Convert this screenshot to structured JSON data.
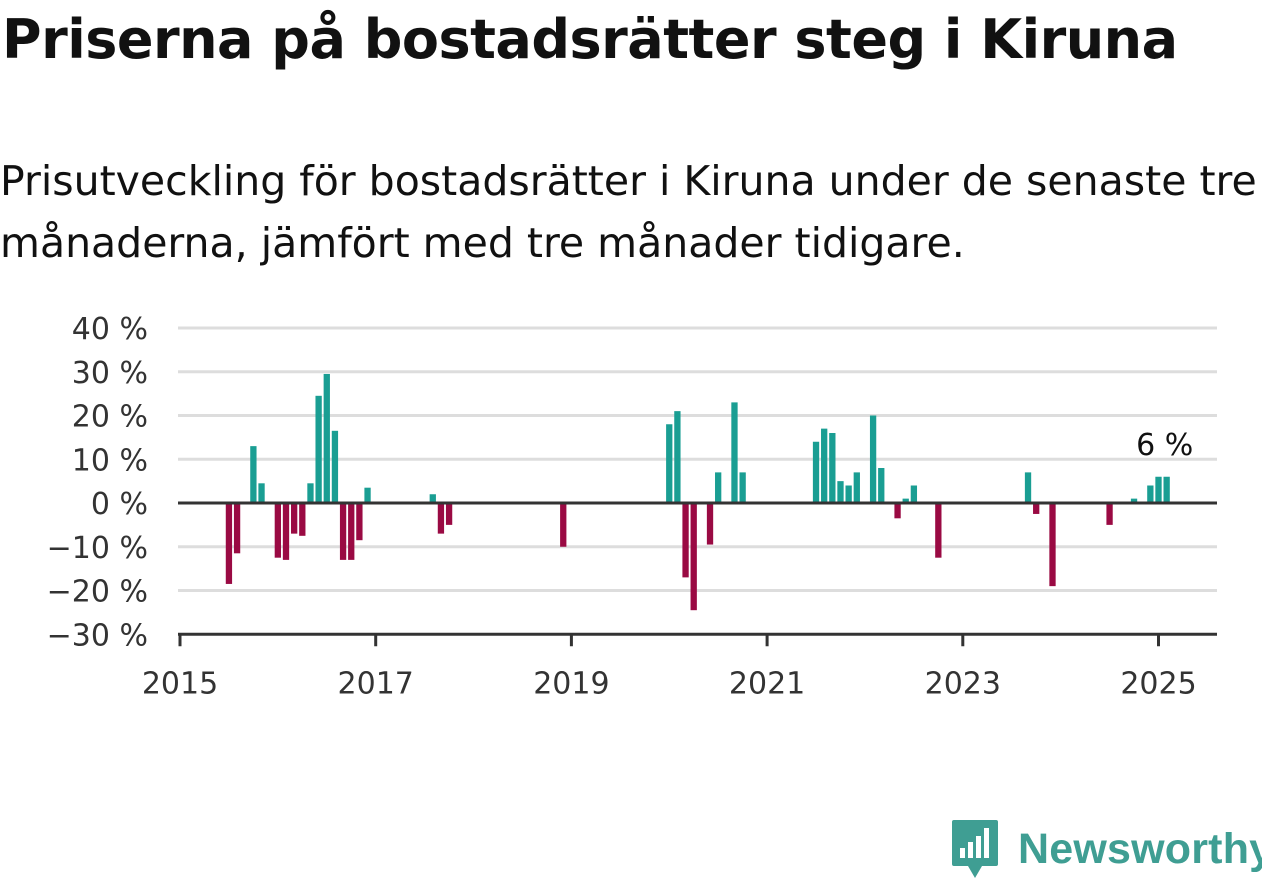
{
  "title": "Priserna på bostadsrätter steg i Kiruna",
  "subtitle": "Prisutveckling för bostadsrätter i Kiruna under de senaste tre månaderna, jämfört med tre månader tidigare.",
  "brand": {
    "name": "Newsworthy",
    "color": "#3f9e93"
  },
  "colors": {
    "positive": "#1a9e93",
    "negative": "#9a0a43",
    "grid": "#dddddd",
    "axis": "#333333"
  },
  "chart_data": {
    "type": "bar",
    "ylim": [
      -30,
      40
    ],
    "y_ticks": [
      40,
      30,
      20,
      10,
      0,
      -10,
      -20,
      -30
    ],
    "y_tick_labels": [
      "40 %",
      "30 %",
      "20 %",
      "10 %",
      "0 %",
      "−10 %",
      "−20 %",
      "−30 %"
    ],
    "x_ticks": [
      2015,
      2017,
      2019,
      2021,
      2023,
      2025
    ],
    "x_tick_labels": [
      "2015",
      "2017",
      "2019",
      "2021",
      "2023",
      "2025"
    ],
    "x_range": [
      "2015-01",
      "2025-07"
    ],
    "grid": true,
    "annotation": {
      "text": "6 %",
      "x": "2025-02",
      "y": 6
    },
    "points": [
      {
        "x": "2015-07",
        "y": -18.5
      },
      {
        "x": "2015-08",
        "y": -11.5
      },
      {
        "x": "2015-10",
        "y": 13
      },
      {
        "x": "2015-11",
        "y": 4.5
      },
      {
        "x": "2016-01",
        "y": -12.5
      },
      {
        "x": "2016-02",
        "y": -13
      },
      {
        "x": "2016-03",
        "y": -7
      },
      {
        "x": "2016-04",
        "y": -7.5
      },
      {
        "x": "2016-05",
        "y": 4.5
      },
      {
        "x": "2016-06",
        "y": 24.5
      },
      {
        "x": "2016-07",
        "y": 29.5
      },
      {
        "x": "2016-08",
        "y": 16.5
      },
      {
        "x": "2016-09",
        "y": -13
      },
      {
        "x": "2016-10",
        "y": -13
      },
      {
        "x": "2016-11",
        "y": -8.5
      },
      {
        "x": "2016-12",
        "y": 3.5
      },
      {
        "x": "2017-08",
        "y": 2
      },
      {
        "x": "2017-09",
        "y": -7
      },
      {
        "x": "2017-10",
        "y": -5
      },
      {
        "x": "2018-12",
        "y": -10
      },
      {
        "x": "2020-01",
        "y": 18
      },
      {
        "x": "2020-02",
        "y": 21
      },
      {
        "x": "2020-03",
        "y": -17
      },
      {
        "x": "2020-04",
        "y": -24.5
      },
      {
        "x": "2020-06",
        "y": -9.5
      },
      {
        "x": "2020-07",
        "y": 7
      },
      {
        "x": "2020-09",
        "y": 23
      },
      {
        "x": "2020-10",
        "y": 7
      },
      {
        "x": "2021-07",
        "y": 14
      },
      {
        "x": "2021-08",
        "y": 17
      },
      {
        "x": "2021-09",
        "y": 16
      },
      {
        "x": "2021-10",
        "y": 5
      },
      {
        "x": "2021-11",
        "y": 4
      },
      {
        "x": "2021-12",
        "y": 7
      },
      {
        "x": "2022-02",
        "y": 20
      },
      {
        "x": "2022-03",
        "y": 8
      },
      {
        "x": "2022-05",
        "y": -3.5
      },
      {
        "x": "2022-06",
        "y": 1
      },
      {
        "x": "2022-07",
        "y": 4
      },
      {
        "x": "2022-10",
        "y": -12.5
      },
      {
        "x": "2023-09",
        "y": 7
      },
      {
        "x": "2023-10",
        "y": -2.5
      },
      {
        "x": "2023-12",
        "y": -19
      },
      {
        "x": "2024-07",
        "y": -5
      },
      {
        "x": "2024-10",
        "y": 1
      },
      {
        "x": "2024-12",
        "y": 4
      },
      {
        "x": "2025-01",
        "y": 6
      },
      {
        "x": "2025-02",
        "y": 6
      }
    ]
  }
}
